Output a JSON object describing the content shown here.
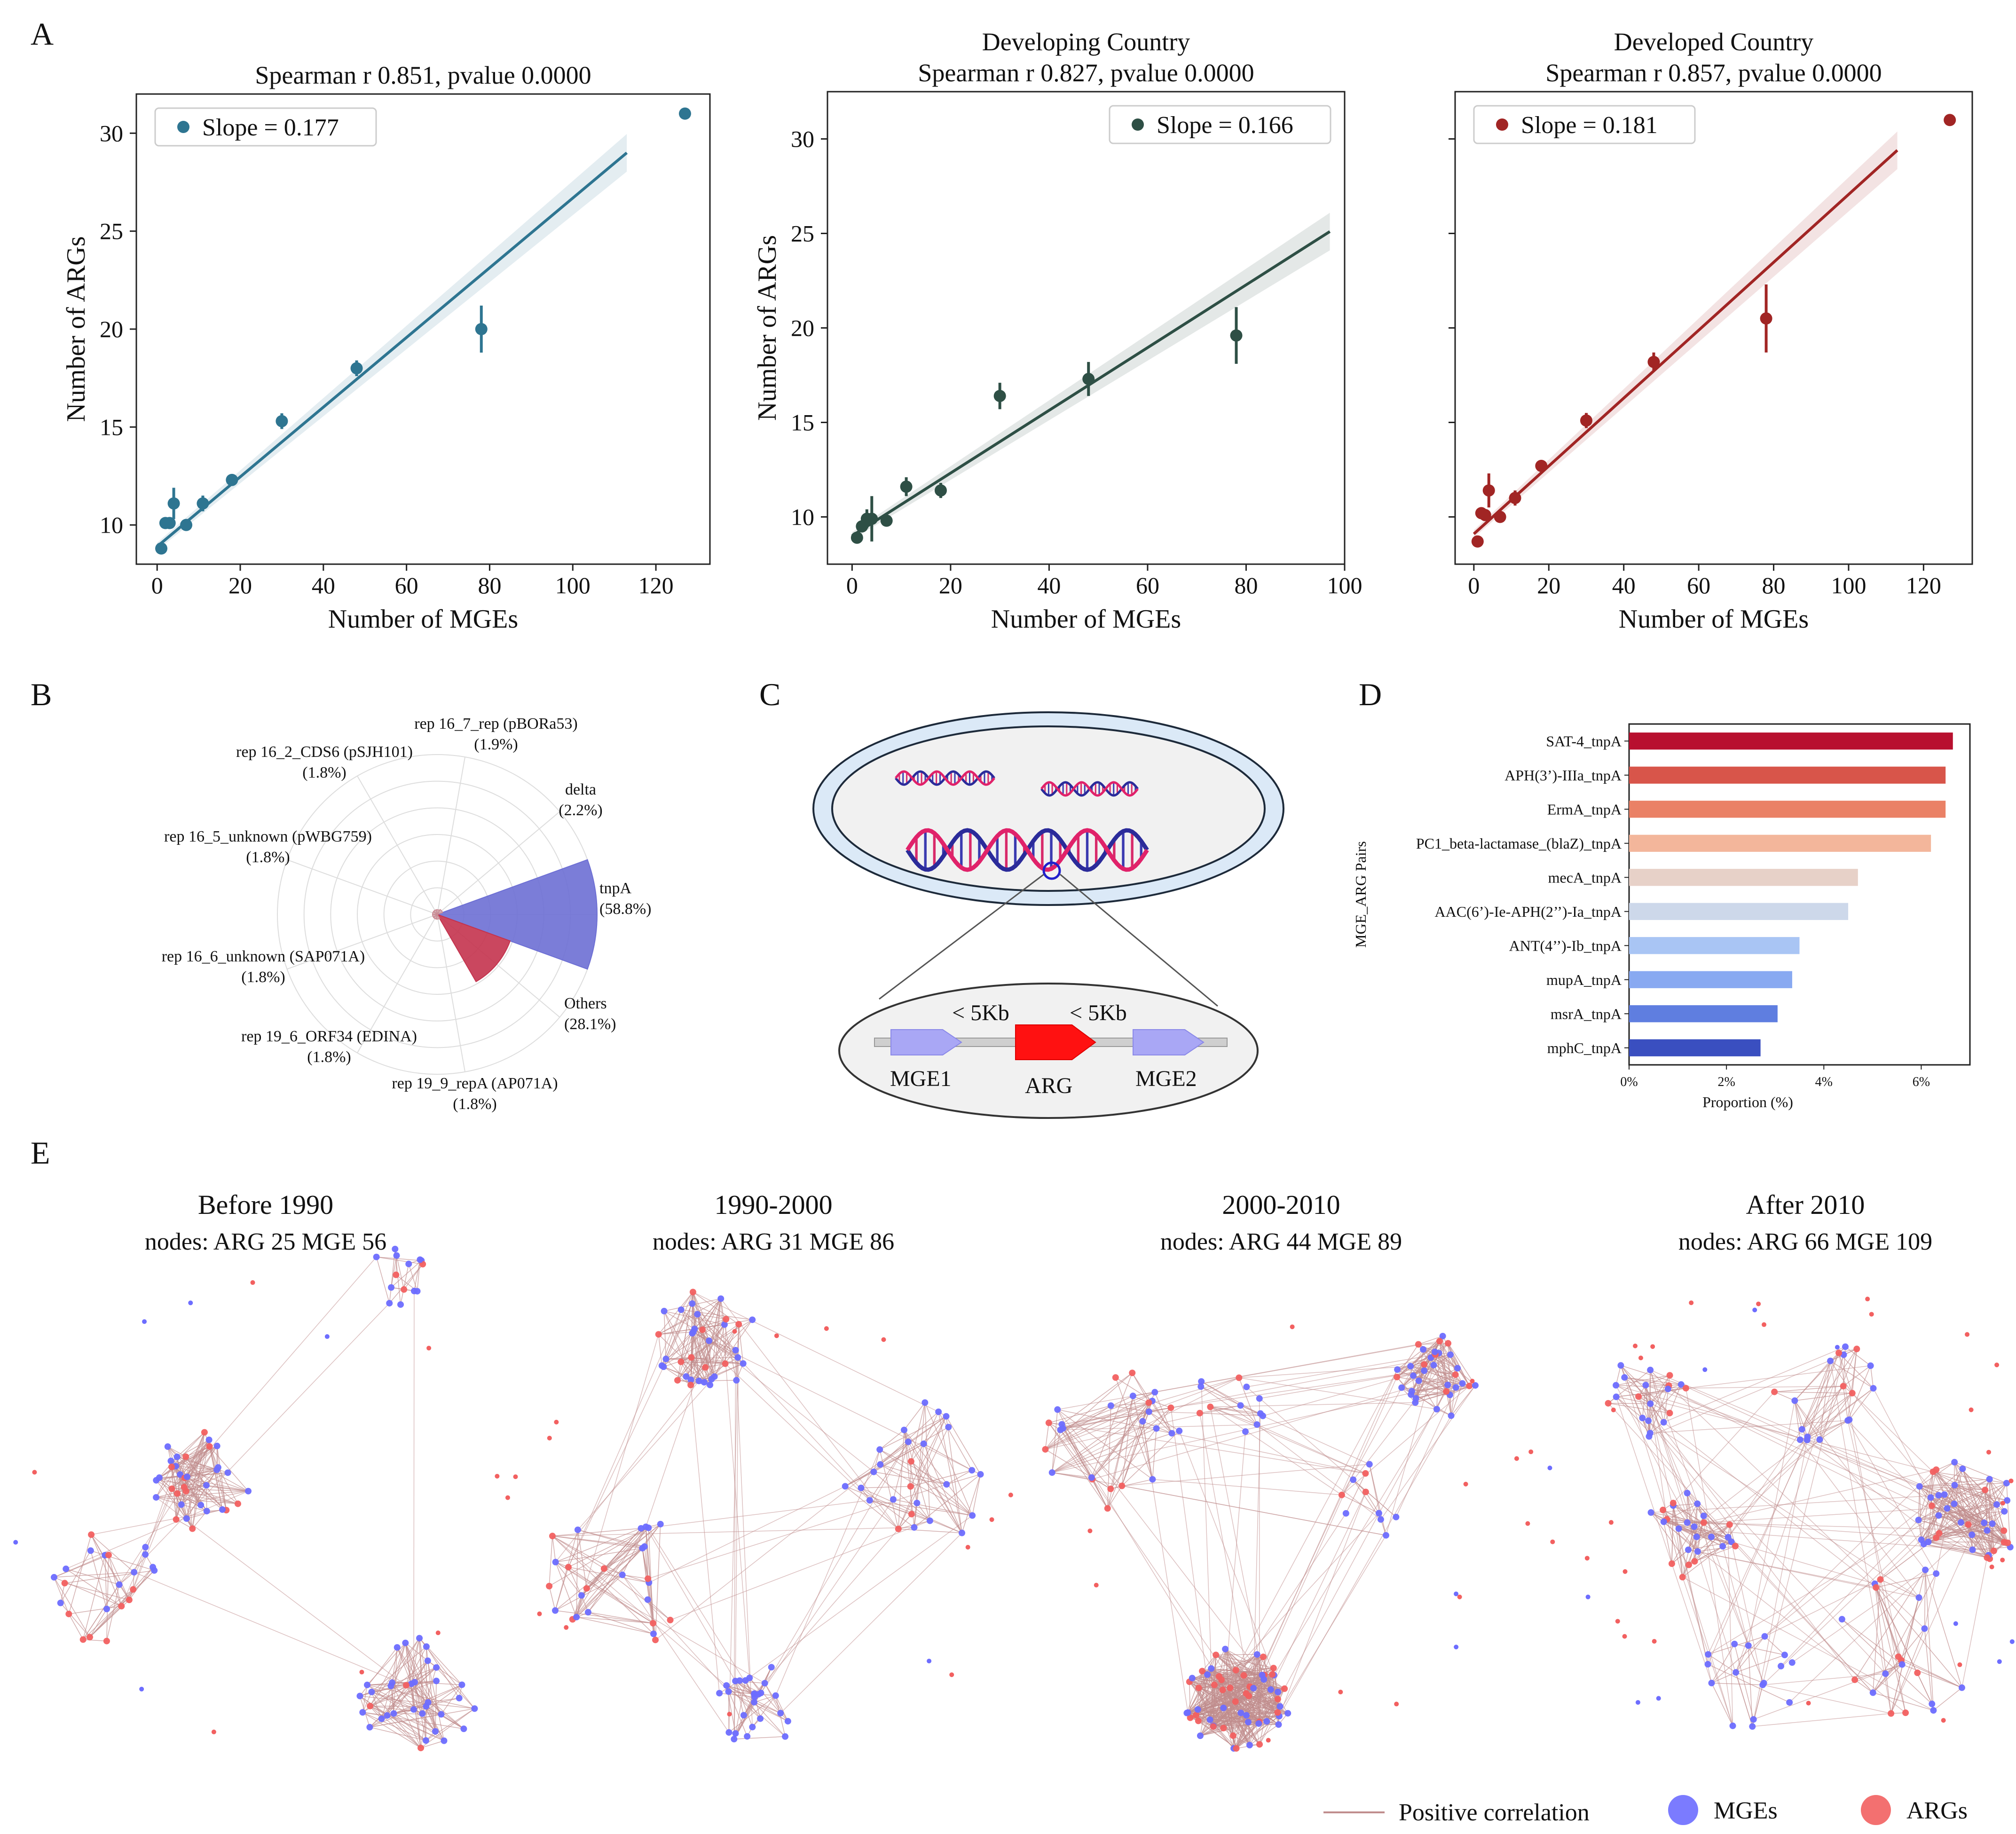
{
  "panel_letters": {
    "a": "A",
    "b": "B",
    "c": "C",
    "d": "D",
    "e": "E"
  },
  "colors": {
    "overall": "#2e7591",
    "developing": "#2e4f45",
    "developed": "#a12524",
    "mge": "#6d6dff",
    "arg": "#f26060",
    "edge": "#c08d8d"
  },
  "chart_data": [
    {
      "id": "A1",
      "type": "scatter",
      "title_lines": [
        "Spearman r 0.851, pvalue 0.0000"
      ],
      "xlabel": "Number of MGEs",
      "ylabel": "Number of ARGs",
      "xlim": [
        -5,
        133
      ],
      "ylim": [
        8,
        32
      ],
      "xticks": [
        0,
        20,
        40,
        60,
        80,
        100,
        120
      ],
      "yticks": [
        10,
        15,
        20,
        25,
        30
      ],
      "legend": "Slope = 0.177",
      "legend_loc": "top-left",
      "color": "#2e7591",
      "points": [
        {
          "x": 1,
          "y": 8.8,
          "err": 0.2
        },
        {
          "x": 2,
          "y": 10.1,
          "err": 0.3
        },
        {
          "x": 3,
          "y": 10.1,
          "err": 0.2
        },
        {
          "x": 4,
          "y": 11.1,
          "err": 0.8
        },
        {
          "x": 7,
          "y": 10.0,
          "err": 0.3
        },
        {
          "x": 11,
          "y": 11.1,
          "err": 0.4
        },
        {
          "x": 18,
          "y": 12.3,
          "err": 0.3
        },
        {
          "x": 30,
          "y": 15.3,
          "err": 0.4
        },
        {
          "x": 48,
          "y": 18.0,
          "err": 0.4
        },
        {
          "x": 78,
          "y": 20.0,
          "err": 1.2
        },
        {
          "x": 127,
          "y": 31.0,
          "err": 0
        }
      ],
      "fit": {
        "x0": 0,
        "y0": 8.9,
        "x1": 113,
        "y1": 29.0
      }
    },
    {
      "id": "A2",
      "type": "scatter",
      "title_lines": [
        "Developing Country",
        "Spearman r 0.827, pvalue 0.0000"
      ],
      "xlabel": "Number of MGEs",
      "ylabel": "Number of ARGs",
      "xlim": [
        -5,
        100
      ],
      "ylim": [
        7.5,
        32.5
      ],
      "xticks": [
        0,
        20,
        40,
        60,
        80,
        100
      ],
      "yticks": [
        10,
        15,
        20,
        25,
        30
      ],
      "legend": "Slope = 0.166",
      "legend_loc": "top-right",
      "color": "#2e4f45",
      "points": [
        {
          "x": 1,
          "y": 8.9,
          "err": 0.2
        },
        {
          "x": 2,
          "y": 9.5,
          "err": 0.3
        },
        {
          "x": 3,
          "y": 9.9,
          "err": 0.5
        },
        {
          "x": 4,
          "y": 9.9,
          "err": 1.2
        },
        {
          "x": 7,
          "y": 9.8,
          "err": 0.3
        },
        {
          "x": 11,
          "y": 11.6,
          "err": 0.5
        },
        {
          "x": 18,
          "y": 11.4,
          "err": 0.4
        },
        {
          "x": 30,
          "y": 16.4,
          "err": 0.7
        },
        {
          "x": 48,
          "y": 17.3,
          "err": 0.9
        },
        {
          "x": 78,
          "y": 19.6,
          "err": 1.5
        }
      ],
      "fit": {
        "x0": 0,
        "y0": 9.0,
        "x1": 97,
        "y1": 25.1
      }
    },
    {
      "id": "A3",
      "type": "scatter",
      "title_lines": [
        "Developed Country",
        "Spearman r 0.857, pvalue 0.0000"
      ],
      "xlabel": "Number of MGEs",
      "ylabel": "",
      "xlim": [
        -5,
        133
      ],
      "ylim": [
        7.5,
        32.5
      ],
      "xticks": [
        0,
        20,
        40,
        60,
        80,
        100,
        120
      ],
      "yticks": [
        10,
        15,
        20,
        25,
        30
      ],
      "legend": "Slope = 0.181",
      "legend_loc": "top-left",
      "color": "#a12524",
      "points": [
        {
          "x": 1,
          "y": 8.7,
          "err": 0.2
        },
        {
          "x": 2,
          "y": 10.2,
          "err": 0.3
        },
        {
          "x": 3,
          "y": 10.1,
          "err": 0.2
        },
        {
          "x": 4,
          "y": 11.4,
          "err": 0.9
        },
        {
          "x": 7,
          "y": 10.0,
          "err": 0.3
        },
        {
          "x": 11,
          "y": 11.0,
          "err": 0.4
        },
        {
          "x": 18,
          "y": 12.7,
          "err": 0.3
        },
        {
          "x": 30,
          "y": 15.1,
          "err": 0.4
        },
        {
          "x": 48,
          "y": 18.2,
          "err": 0.5
        },
        {
          "x": 78,
          "y": 20.5,
          "err": 1.8
        },
        {
          "x": 127,
          "y": 31.0,
          "err": 0
        }
      ],
      "fit": {
        "x0": 0,
        "y0": 9.1,
        "x1": 113,
        "y1": 29.4
      }
    },
    {
      "id": "B",
      "type": "pie",
      "subtype": "polar-area",
      "slices": [
        {
          "label": "tnpA",
          "pct": "(58.8%)",
          "value": 58.8,
          "color": "#6d6fd4"
        },
        {
          "label": "Others",
          "pct": "(28.1%)",
          "value": 28.1,
          "color": "#c4334e"
        },
        {
          "label": "rep 19_9_repA (AP071A)",
          "pct": "(1.8%)",
          "value": 1.8,
          "color": "#c98b94"
        },
        {
          "label": "rep 19_6_ORF34 (EDINA)",
          "pct": "(1.8%)",
          "value": 1.8,
          "color": "#c98b94"
        },
        {
          "label": "rep 16_6_unknown (SAP071A)",
          "pct": "(1.8%)",
          "value": 1.8,
          "color": "#c98b94"
        },
        {
          "label": "rep 16_5_unknown (pWBG759)",
          "pct": "(1.8%)",
          "value": 1.8,
          "color": "#c98b94"
        },
        {
          "label": "rep 16_2_CDS6 (pSJH101)",
          "pct": "(1.8%)",
          "value": 1.8,
          "color": "#c98b94"
        },
        {
          "label": "rep 16_7_rep (pBORa53)",
          "pct": "(1.9%)",
          "value": 1.9,
          "color": "#c98b94"
        },
        {
          "label": "delta",
          "pct": "(2.2%)",
          "value": 2.2,
          "color": "#c98b94"
        }
      ]
    },
    {
      "id": "D",
      "type": "bar",
      "orientation": "horizontal",
      "ylabel": "MGE_ARG Pairs",
      "xlabel": "Proportion (%)",
      "xlim": [
        0,
        7
      ],
      "xticks": [
        0,
        2,
        4,
        6
      ],
      "xtick_labels": [
        "0%",
        "2%",
        "4%",
        "6%"
      ],
      "categories": [
        "SAT-4_tnpA",
        "APH(3’)-IIIa_tnpA",
        "ErmA_tnpA",
        "PC1_beta-lactamase_(blaZ)_tnpA",
        "mecA_tnpA",
        "AAC(6’)-Ie-APH(2’’)-Ia_tnpA",
        "ANT(4’’)-Ib_tnpA",
        "mupA_tnpA",
        "msrA_tnpA",
        "mphC_tnpA"
      ],
      "values": [
        6.65,
        6.5,
        6.5,
        6.2,
        4.7,
        4.5,
        3.5,
        3.35,
        3.05,
        2.7
      ],
      "colors": [
        "#b8102f",
        "#d8554a",
        "#ea8166",
        "#f3b69b",
        "#e7d1c8",
        "#cdd8ea",
        "#a9c5f4",
        "#88a9f1",
        "#5f7ee0",
        "#3a4fc0"
      ]
    }
  ],
  "panel_c": {
    "lt5_left": "< 5Kb",
    "lt5_right": "< 5Kb",
    "mge1": "MGE1",
    "arg": "ARG",
    "mge2": "MGE2"
  },
  "panel_e": {
    "networks": [
      {
        "title": "Before 1990",
        "nodes_label": "nodes: ARG 25 MGE 56",
        "arg": 25,
        "mge": 56
      },
      {
        "title": "1990-2000",
        "nodes_label": "nodes: ARG 31 MGE 86",
        "arg": 31,
        "mge": 86
      },
      {
        "title": "2000-2010",
        "nodes_label": "nodes: ARG 44 MGE 89",
        "arg": 44,
        "mge": 89
      },
      {
        "title": "After 2010",
        "nodes_label": "nodes: ARG 66 MGE 109",
        "arg": 66,
        "mge": 109
      }
    ],
    "legend": {
      "positive": "Positive correlation",
      "mges": "MGEs",
      "args": "ARGs"
    }
  }
}
